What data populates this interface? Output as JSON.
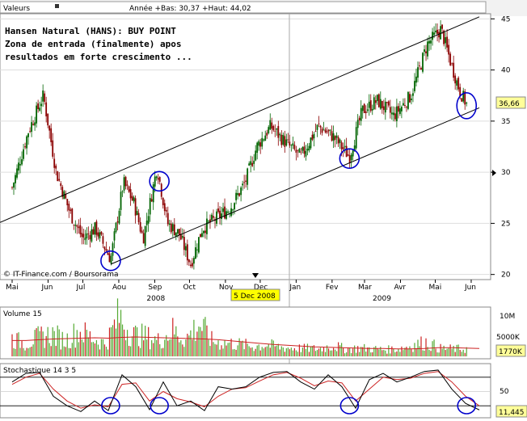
{
  "header": {
    "instrument_label": "Valeurs",
    "stats_text": "Année +Bas: 30,37 +Haut: 44,02"
  },
  "annotation": {
    "line1": "Hansen Natural (HANS): BUY POINT",
    "line2": "Zona de entrada (finalmente) apos",
    "line3": "resultados em forte crescimento ..."
  },
  "credit": "© IT-Finance.com / Boursorama",
  "date_marker": "5 Dec 2008",
  "colors": {
    "up_candle": "#006400",
    "down_candle": "#8b0000",
    "volume_bar": "#55aa33",
    "volume_ma": "#cc2222",
    "stoch_k": "#000000",
    "stoch_d": "#cc2222",
    "circle": "#0000cc",
    "last_price_bg": "#ffff99",
    "date_marker_bg": "#ffff00"
  },
  "chart_data": [
    {
      "type": "candlestick",
      "title": "Hansen Natural (HANS): BUY POINT",
      "x_tick_labels": [
        "Mai",
        "Jun",
        "Jul",
        "Aou",
        "Sep",
        "Oct",
        "Nov",
        "Dec",
        "Jan",
        "Fev",
        "Mar",
        "Avr",
        "Mai",
        "Jun"
      ],
      "year_labels": [
        "2008",
        "2009"
      ],
      "y_ticks": [
        20,
        25,
        30,
        35,
        40,
        45
      ],
      "ylim": [
        19.5,
        45.5
      ],
      "last_price": "36,66",
      "grid": true,
      "series": [
        {
          "name": "close",
          "x": [
            "2008-05-01",
            "2008-05-15",
            "2008-05-28",
            "2008-06-08",
            "2008-06-20",
            "2008-07-01",
            "2008-07-12",
            "2008-07-25",
            "2008-08-05",
            "2008-08-14",
            "2008-08-22",
            "2008-09-03",
            "2008-09-12",
            "2008-09-22",
            "2008-10-02",
            "2008-10-12",
            "2008-10-24",
            "2008-11-05",
            "2008-11-18",
            "2008-11-28",
            "2008-12-10",
            "2008-12-22",
            "2009-01-05",
            "2009-01-20",
            "2009-02-02",
            "2009-02-16",
            "2009-02-27",
            "2009-03-12",
            "2009-03-26",
            "2009-04-10",
            "2009-04-24",
            "2009-05-06",
            "2009-05-15",
            "2009-05-22",
            "2009-05-28"
          ],
          "values": [
            28.5,
            34,
            37.5,
            30,
            26,
            23.5,
            24.5,
            21.5,
            29,
            27,
            23.5,
            30.5,
            25,
            24,
            21,
            24.5,
            25.5,
            26.5,
            29,
            32.5,
            34.5,
            33,
            31.5,
            34.5,
            33.5,
            31.5,
            36,
            37,
            35.5,
            37.5,
            42.5,
            44,
            40.5,
            38,
            36.66
          ]
        },
        {
          "name": "channel_upper",
          "x": [
            "2008-05-01",
            "2009-06-08"
          ],
          "values": [
            25.6,
            45.2
          ]
        },
        {
          "name": "channel_lower",
          "x": [
            "2008-07-25",
            "2009-06-08"
          ],
          "values": [
            21.0,
            36.3
          ]
        }
      ],
      "annotations": [
        "2008-07-25",
        "2008-09-05",
        "2009-02-16",
        "2009-05-28"
      ]
    },
    {
      "type": "bar",
      "title": "Volume 15",
      "y_tick_labels": [
        "10M",
        "5000K"
      ],
      "last_value": "1770K",
      "series": [
        {
          "name": "volume",
          "values": [
            4.2,
            3.1,
            4.6,
            5.3,
            3.8,
            6.1,
            4.4,
            3.0,
            9.6,
            5.2,
            4.8,
            3.7,
            6.2,
            4.1,
            7.9,
            3.5,
            3.2,
            2.9,
            2.4,
            2.8,
            2.2,
            2.0,
            1.9,
            1.8,
            2.6,
            1.7,
            2.0,
            1.8,
            1.6,
            1.9,
            2.7,
            3.4,
            1.9,
            1.8,
            1.77
          ]
        },
        {
          "name": "volume_ma",
          "values": [
            4.0,
            4.0,
            4.2,
            4.4,
            4.5,
            4.6,
            4.7,
            4.6,
            4.8,
            4.9,
            4.8,
            4.7,
            4.6,
            4.5,
            4.4,
            4.2,
            3.9,
            3.6,
            3.3,
            3.0,
            2.8,
            2.6,
            2.4,
            2.3,
            2.2,
            2.1,
            2.0,
            2.0,
            1.9,
            1.9,
            2.0,
            2.2,
            2.2,
            2.1,
            2.0
          ]
        }
      ]
    },
    {
      "type": "line",
      "title": "Stochastique 14 3 5",
      "y_tick_labels": [
        "50"
      ],
      "last_value": "11,445",
      "series": [
        {
          "name": "k",
          "values": [
            70,
            88,
            90,
            40,
            20,
            8,
            30,
            10,
            85,
            60,
            12,
            70,
            20,
            30,
            10,
            60,
            55,
            60,
            80,
            90,
            92,
            70,
            55,
            85,
            60,
            15,
            75,
            88,
            70,
            80,
            92,
            95,
            55,
            25,
            11.445
          ]
        },
        {
          "name": "d",
          "values": [
            65,
            80,
            88,
            55,
            30,
            15,
            22,
            18,
            65,
            68,
            30,
            50,
            35,
            28,
            18,
            40,
            55,
            58,
            72,
            85,
            90,
            78,
            62,
            72,
            68,
            30,
            55,
            80,
            75,
            78,
            88,
            92,
            70,
            40,
            20
          ]
        }
      ]
    }
  ]
}
